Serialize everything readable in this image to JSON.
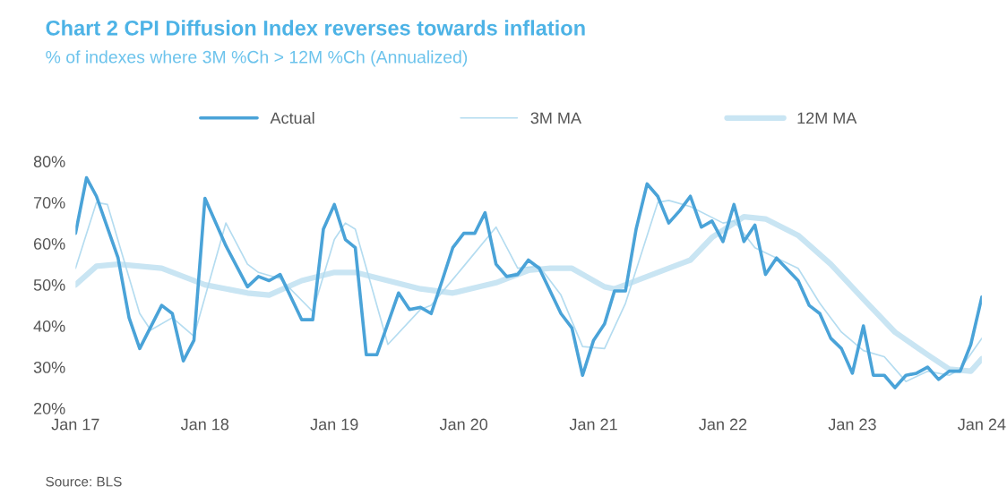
{
  "chart_data": {
    "type": "line",
    "title": "Chart 2 CPI Diffusion Index reverses towards inflation",
    "subtitle": "% of indexes where 3M %Ch > 12M %Ch (Annualized)",
    "annotations": [
      "Source: BLS"
    ],
    "legend": "top",
    "grid": false,
    "ylim": [
      20,
      80
    ],
    "yticks": [
      {
        "value": 20,
        "label": "20%"
      },
      {
        "value": 30,
        "label": "30%"
      },
      {
        "value": 40,
        "label": "40%"
      },
      {
        "value": 50,
        "label": "50%"
      },
      {
        "value": 60,
        "label": "60%"
      },
      {
        "value": 70,
        "label": "70%"
      },
      {
        "value": 80,
        "label": "80%"
      }
    ],
    "xlim": [
      "2017-01",
      "2024-01"
    ],
    "xticks": [
      {
        "value": "2017-01",
        "label": "Jan 17"
      },
      {
        "value": "2018-01",
        "label": "Jan 18"
      },
      {
        "value": "2019-01",
        "label": "Jan 19"
      },
      {
        "value": "2020-01",
        "label": "Jan 20"
      },
      {
        "value": "2021-01",
        "label": "Jan 21"
      },
      {
        "value": "2022-01",
        "label": "Jan 22"
      },
      {
        "value": "2023-01",
        "label": "Jan 23"
      },
      {
        "value": "2024-01",
        "label": "Jan 24"
      }
    ],
    "series": [
      {
        "name": "Actual",
        "color": "#4aa3d8",
        "x": [
          "2017-01",
          "2017-02",
          "2017-03",
          "2017-05",
          "2017-06",
          "2017-07",
          "2017-09",
          "2017-10",
          "2017-11",
          "2017-12",
          "2018-01",
          "2018-03",
          "2018-05",
          "2018-06",
          "2018-07",
          "2018-08",
          "2018-10",
          "2018-11",
          "2018-12",
          "2019-01",
          "2019-02",
          "2019-03",
          "2019-04",
          "2019-05",
          "2019-07",
          "2019-08",
          "2019-09",
          "2019-10",
          "2019-11",
          "2019-12",
          "2020-01",
          "2020-02",
          "2020-03",
          "2020-04",
          "2020-05",
          "2020-06",
          "2020-07",
          "2020-08",
          "2020-10",
          "2020-11",
          "2020-12",
          "2021-01",
          "2021-02",
          "2021-03",
          "2021-04",
          "2021-05",
          "2021-06",
          "2021-07",
          "2021-08",
          "2021-09",
          "2021-10",
          "2021-11",
          "2021-12",
          "2022-01",
          "2022-02",
          "2022-03",
          "2022-04",
          "2022-05",
          "2022-06",
          "2022-08",
          "2022-09",
          "2022-10",
          "2022-11",
          "2022-12",
          "2023-01",
          "2023-02",
          "2023-03",
          "2023-04",
          "2023-05",
          "2023-06",
          "2023-07",
          "2023-08",
          "2023-09",
          "2023-10",
          "2023-11",
          "2023-12",
          "2024-01"
        ],
        "values": [
          62.5,
          76,
          71.5,
          56.5,
          42,
          34.5,
          45,
          43,
          31.5,
          36.5,
          71,
          59.5,
          49.5,
          52,
          51,
          52.5,
          41.5,
          41.5,
          63.5,
          69.5,
          61,
          59,
          33,
          33,
          48,
          44,
          44.5,
          43,
          51,
          59,
          62.5,
          62.5,
          67.5,
          55,
          52,
          52.5,
          56,
          54,
          43,
          39.5,
          28,
          36.5,
          40.5,
          48.5,
          48.5,
          63.5,
          74.5,
          71.5,
          65,
          68,
          71.5,
          64,
          65.5,
          60.5,
          69.5,
          60.5,
          64.5,
          52.5,
          56.5,
          51,
          45,
          43,
          37,
          34.5,
          28.5,
          40,
          28,
          28,
          25,
          28,
          28.5,
          30,
          27,
          29,
          29,
          35.5,
          47
        ]
      },
      {
        "name": "3M MA",
        "color": "#b4dcf0",
        "x": [
          "2017-01",
          "2017-03",
          "2017-04",
          "2017-07",
          "2017-08",
          "2017-10",
          "2017-12",
          "2018-03",
          "2018-05",
          "2018-06",
          "2018-08",
          "2018-11",
          "2019-01",
          "2019-02",
          "2019-03",
          "2019-06",
          "2019-09",
          "2019-10",
          "2020-01",
          "2020-04",
          "2020-06",
          "2020-08",
          "2020-10",
          "2020-12",
          "2021-02",
          "2021-04",
          "2021-07",
          "2021-08",
          "2021-10",
          "2022-01",
          "2022-02",
          "2022-04",
          "2022-06",
          "2022-08",
          "2022-10",
          "2022-12",
          "2023-02",
          "2023-04",
          "2023-06",
          "2023-08",
          "2023-10",
          "2023-11",
          "2024-01"
        ],
        "values": [
          54,
          70,
          69.5,
          43,
          39,
          42,
          37.5,
          65,
          55,
          53,
          51.5,
          43.5,
          61,
          65,
          63.5,
          35.5,
          44,
          45,
          54.5,
          64,
          54,
          54.5,
          47.5,
          35,
          34.5,
          45.5,
          70,
          70.5,
          69,
          65,
          65.5,
          59,
          56.5,
          54,
          45.5,
          38.5,
          34,
          32.5,
          26.5,
          29,
          28,
          29.5,
          37
        ]
      },
      {
        "name": "12M MA",
        "color": "#c9e5f3",
        "x": [
          "2017-01",
          "2017-03",
          "2017-05",
          "2017-09",
          "2018-01",
          "2018-05",
          "2018-07",
          "2018-10",
          "2019-01",
          "2019-03",
          "2019-06",
          "2019-09",
          "2019-12",
          "2020-04",
          "2020-07",
          "2020-09",
          "2020-11",
          "2021-02",
          "2021-03",
          "2021-04",
          "2021-08",
          "2021-10",
          "2021-12",
          "2022-03",
          "2022-05",
          "2022-08",
          "2022-11",
          "2023-02",
          "2023-05",
          "2023-08",
          "2023-10",
          "2023-12",
          "2024-01"
        ],
        "values": [
          50,
          54.5,
          55,
          54,
          50,
          48,
          47.5,
          51,
          53,
          53,
          51,
          49,
          48,
          50.5,
          53.5,
          54,
          54,
          49.5,
          49,
          50,
          54,
          56,
          61.5,
          66.5,
          66,
          62,
          55,
          46.5,
          38.5,
          33,
          29.5,
          29,
          32
        ]
      }
    ]
  }
}
